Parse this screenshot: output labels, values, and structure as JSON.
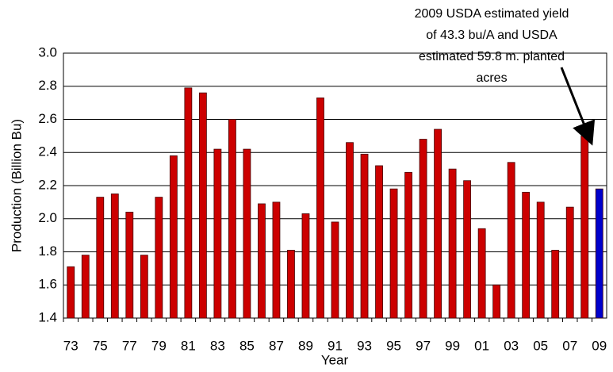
{
  "chart_data": {
    "type": "bar",
    "y_label": "Production (Billion Bu)",
    "x_label": "Year",
    "annotation": [
      "2009 USDA estimated yield",
      "of 43.3 bu/A and USDA",
      "estimated 59.8 m. planted",
      "acres"
    ],
    "categories": [
      "73",
      null,
      "75",
      null,
      "77",
      null,
      "79",
      null,
      "81",
      null,
      "83",
      null,
      "85",
      null,
      "87",
      null,
      "89",
      null,
      "91",
      null,
      "93",
      null,
      "95",
      null,
      "97",
      null,
      "99",
      null,
      "01",
      null,
      "03",
      null,
      "05",
      null,
      "07",
      null,
      "09"
    ],
    "values": [
      1.71,
      1.78,
      2.13,
      2.15,
      2.04,
      1.78,
      2.13,
      2.38,
      2.79,
      2.76,
      2.42,
      2.6,
      2.42,
      2.09,
      2.1,
      1.81,
      2.03,
      2.73,
      1.98,
      2.46,
      2.39,
      2.32,
      2.18,
      2.28,
      2.48,
      2.54,
      2.3,
      2.23,
      1.94,
      1.6,
      2.34,
      2.16,
      2.1,
      1.81,
      2.07,
      2.5,
      2.18
    ],
    "colors": [
      "#cc0000",
      "#cc0000",
      "#cc0000",
      "#cc0000",
      "#cc0000",
      "#cc0000",
      "#cc0000",
      "#cc0000",
      "#cc0000",
      "#cc0000",
      "#cc0000",
      "#cc0000",
      "#cc0000",
      "#cc0000",
      "#cc0000",
      "#cc0000",
      "#cc0000",
      "#cc0000",
      "#cc0000",
      "#cc0000",
      "#cc0000",
      "#cc0000",
      "#cc0000",
      "#cc0000",
      "#cc0000",
      "#cc0000",
      "#cc0000",
      "#cc0000",
      "#cc0000",
      "#cc0000",
      "#cc0000",
      "#cc0000",
      "#cc0000",
      "#cc0000",
      "#cc0000",
      "#cc0000",
      "#0000cc"
    ],
    "ylim": [
      1.4,
      3.0
    ],
    "yticks": [
      1.4,
      1.6,
      1.8,
      {
        "value": 2.0,
        "label": "2.0"
      },
      2.2,
      2.4,
      2.6,
      2.8,
      {
        "value": 3.0,
        "label": "3.0"
      }
    ],
    "grid": true
  }
}
